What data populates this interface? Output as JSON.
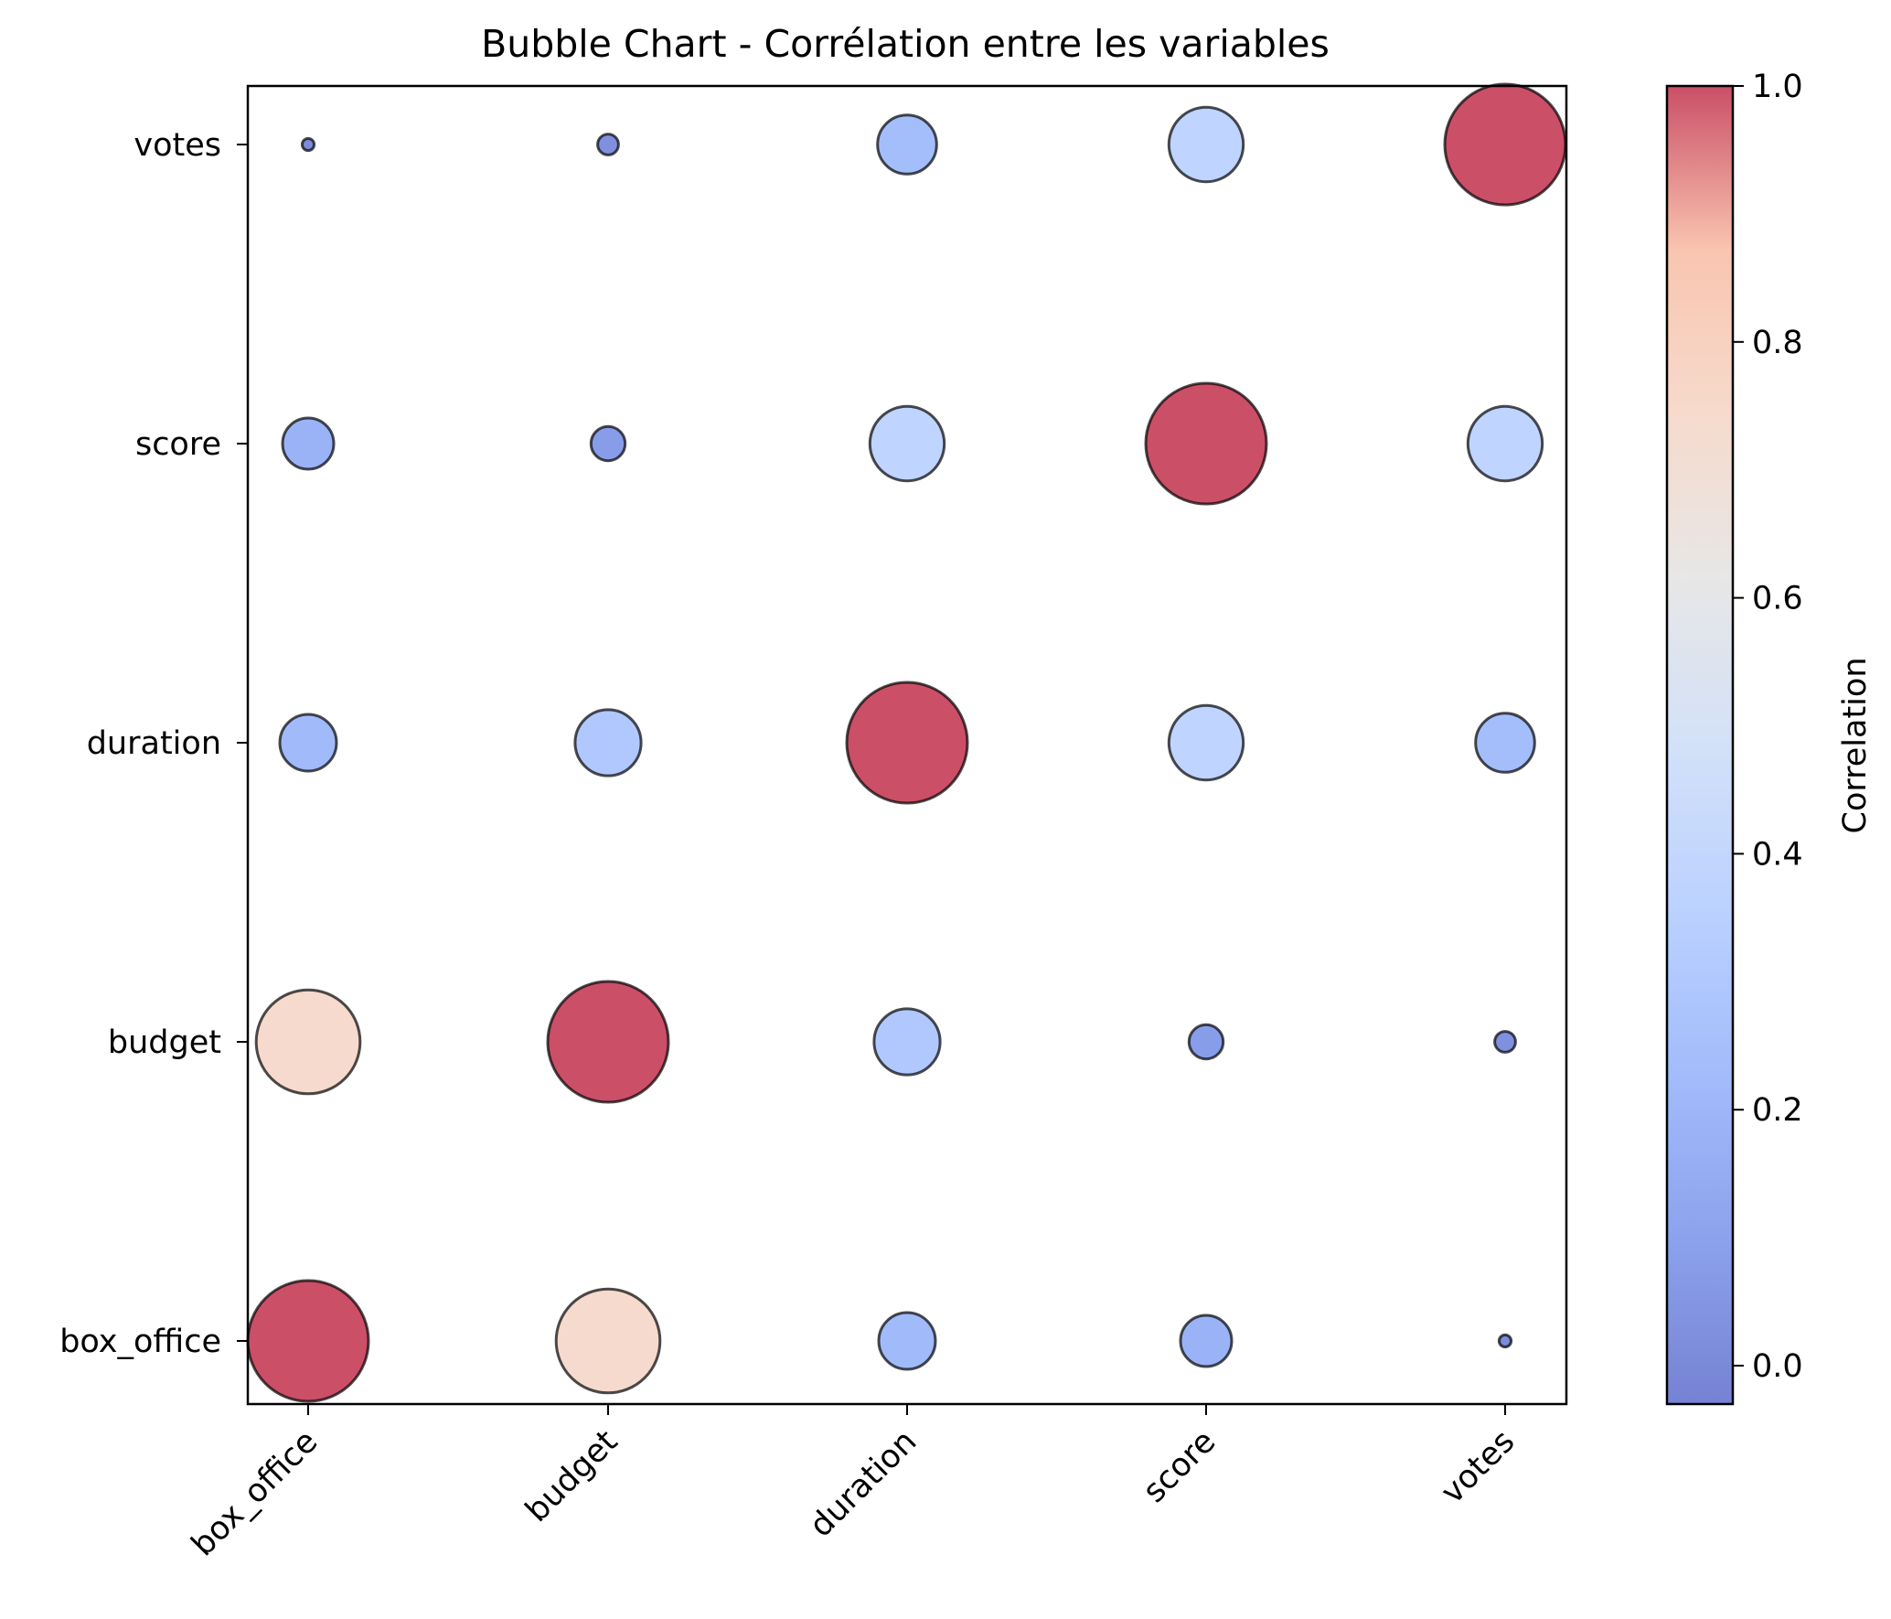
{
  "chart_data": {
    "type": "scatter",
    "title": "Bubble Chart - Corrélation entre les variables",
    "xlabel": "",
    "ylabel": "",
    "x_categories": [
      "box_office",
      "budget",
      "duration",
      "score",
      "votes"
    ],
    "y_categories": [
      "box_office",
      "budget",
      "duration",
      "score",
      "votes"
    ],
    "matrix": [
      [
        1.0,
        0.74,
        0.22,
        0.18,
        0.01
      ],
      [
        0.74,
        1.0,
        0.3,
        0.08,
        0.03
      ],
      [
        0.22,
        0.3,
        1.0,
        0.38,
        0.24
      ],
      [
        0.18,
        0.08,
        0.38,
        1.0,
        0.38
      ],
      [
        0.01,
        0.03,
        0.24,
        0.38,
        1.0
      ]
    ],
    "colorbar": {
      "label": "Correlation",
      "colormap": "coolwarm",
      "range": [
        -0.03,
        1.0
      ],
      "ticks": [
        "0.0",
        "0.2",
        "0.4",
        "0.6",
        "0.8",
        "1.0"
      ]
    },
    "marker_alpha": 0.7,
    "edge_color": "#000000",
    "grid": false
  }
}
